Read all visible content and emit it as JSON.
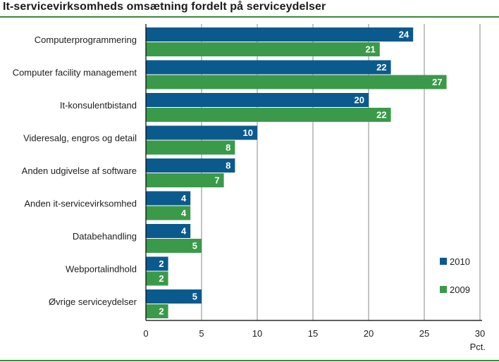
{
  "chart_data": {
    "type": "bar",
    "orientation": "horizontal",
    "title": "It-servicevirksomheds omsætning fordelt på serviceydelser",
    "categories": [
      "Computerprogrammering",
      "Computer facility management",
      "It-konsulentbistand",
      "Videresalg, engros og detail",
      "Anden udgivelse af software",
      "Anden it-servicevirksomhed",
      "Databehandling",
      "Webportalindhold",
      "Øvrige serviceydelser"
    ],
    "series": [
      {
        "name": "2010",
        "color": "#0b5a8e",
        "values": [
          24,
          22,
          20,
          10,
          8,
          4,
          4,
          2,
          5
        ]
      },
      {
        "name": "2009",
        "color": "#3a9a4a",
        "values": [
          21,
          27,
          22,
          8,
          7,
          4,
          5,
          2,
          2
        ]
      }
    ],
    "xlabel": "Pct.",
    "xlim": [
      0,
      30
    ],
    "xticks": [
      0,
      5,
      10,
      15,
      20,
      25,
      30
    ],
    "grid": true,
    "legend_position": "bottom-right"
  }
}
